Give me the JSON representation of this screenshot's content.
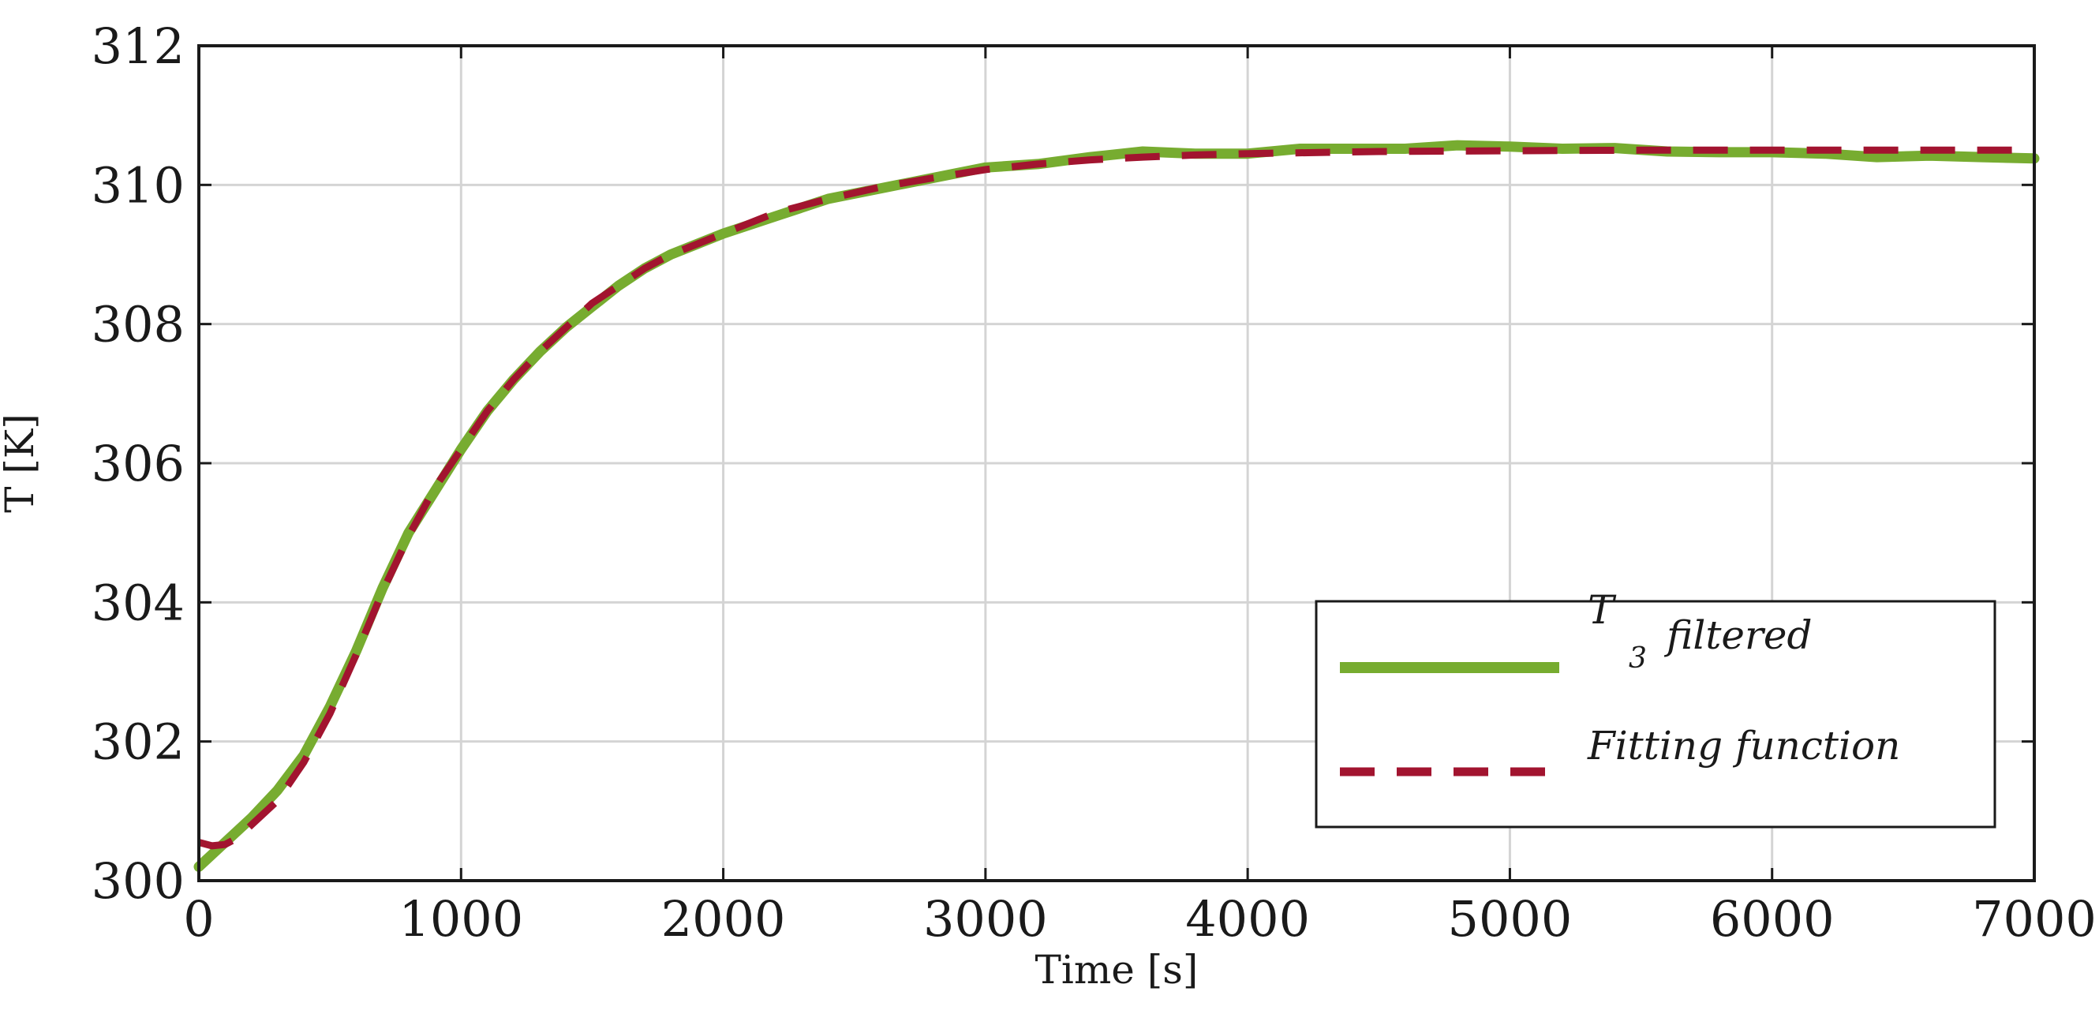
{
  "chart_data": {
    "type": "line",
    "xlabel": "Time [s]",
    "ylabel": "T [K]",
    "xlim": [
      0,
      7000
    ],
    "ylim": [
      300,
      312
    ],
    "xticks": [
      "0",
      "1000",
      "2000",
      "3000",
      "4000",
      "5000",
      "6000",
      "7000"
    ],
    "yticks": [
      "300",
      "302",
      "304",
      "306",
      "308",
      "310",
      "312"
    ],
    "grid": true,
    "legend_position": "bottom-right",
    "series": [
      {
        "name": "T3 filtered",
        "legend_main": "T",
        "legend_sub": "3",
        "legend_suffix": "filtered",
        "color": "#77AC30",
        "style": "solid",
        "x": [
          0,
          100,
          200,
          300,
          400,
          500,
          600,
          700,
          800,
          900,
          1000,
          1100,
          1200,
          1300,
          1400,
          1500,
          1600,
          1700,
          1800,
          1900,
          2000,
          2200,
          2400,
          2600,
          2800,
          3000,
          3200,
          3400,
          3600,
          3800,
          4000,
          4200,
          4400,
          4600,
          4800,
          5000,
          5200,
          5400,
          5600,
          5800,
          6000,
          6200,
          6400,
          6600,
          6800,
          7000
        ],
        "y": [
          300.2,
          300.55,
          300.9,
          301.3,
          301.8,
          302.5,
          303.3,
          304.2,
          305.0,
          305.6,
          306.2,
          306.75,
          307.2,
          307.6,
          307.95,
          308.25,
          308.55,
          308.8,
          309.0,
          309.15,
          309.3,
          309.55,
          309.8,
          309.95,
          310.1,
          310.25,
          310.3,
          310.4,
          310.48,
          310.45,
          310.45,
          310.52,
          310.52,
          310.52,
          310.57,
          310.55,
          310.52,
          310.53,
          310.48,
          310.47,
          310.47,
          310.45,
          310.4,
          310.42,
          310.4,
          310.38
        ]
      },
      {
        "name": "Fitting function",
        "color": "#A2142F",
        "style": "dashed",
        "x": [
          0,
          50,
          100,
          150,
          200,
          300,
          400,
          500,
          600,
          700,
          800,
          900,
          1000,
          1100,
          1200,
          1300,
          1400,
          1500,
          1600,
          1700,
          1800,
          1900,
          2000,
          2200,
          2400,
          2600,
          2800,
          3000,
          3200,
          3400,
          3600,
          3800,
          4000,
          4500,
          5000,
          5500,
          6000,
          6500,
          7000
        ],
        "y": [
          300.55,
          300.5,
          300.52,
          300.62,
          300.8,
          301.15,
          301.7,
          302.4,
          303.25,
          304.15,
          304.95,
          305.65,
          306.2,
          306.75,
          307.2,
          307.6,
          307.95,
          308.3,
          308.55,
          308.8,
          309.0,
          309.15,
          309.3,
          309.6,
          309.8,
          309.97,
          310.1,
          310.22,
          310.3,
          310.36,
          310.4,
          310.43,
          310.45,
          310.48,
          310.49,
          310.5,
          310.5,
          310.5,
          310.5
        ]
      }
    ]
  }
}
